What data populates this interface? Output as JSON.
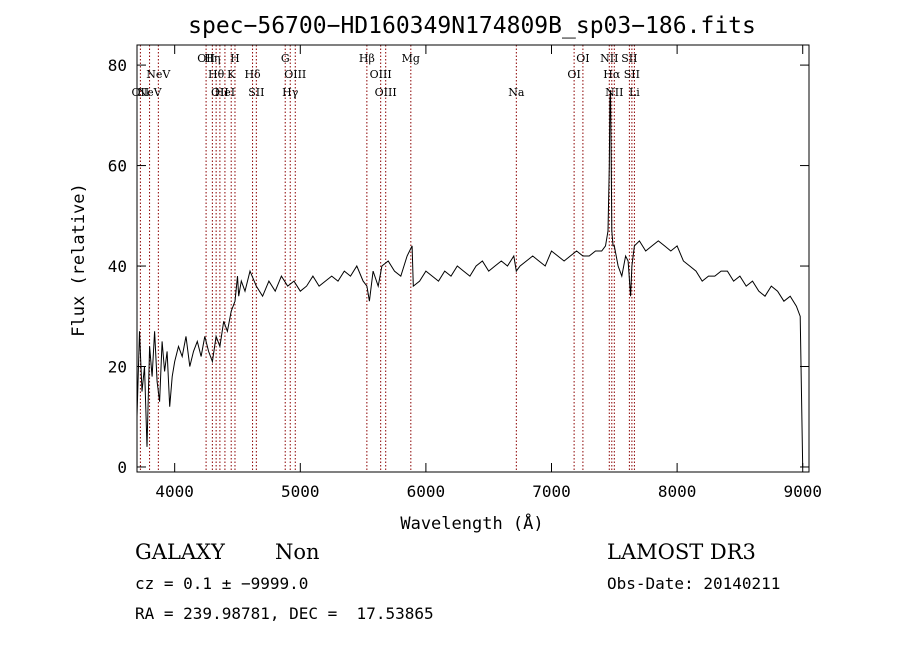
{
  "chart_data": {
    "type": "line",
    "title": "spec−56700−HD160349N174809B_sp03−186.fits",
    "xlabel": "Wavelength (Å)",
    "ylabel": "Flux (relative)",
    "xlim": [
      3700,
      9050
    ],
    "ylim": [
      -1,
      84
    ],
    "x_ticks": [
      4000,
      5000,
      6000,
      7000,
      8000,
      9000
    ],
    "y_ticks": [
      0,
      20,
      40,
      60,
      80
    ],
    "line_color": "#000000",
    "marker_color": "#8b0000",
    "series": [
      {
        "x": [
          3700,
          3720,
          3740,
          3760,
          3780,
          3800,
          3820,
          3840,
          3860,
          3880,
          3900,
          3920,
          3940,
          3960,
          3980,
          4000,
          4030,
          4060,
          4090,
          4120,
          4150,
          4180,
          4210,
          4240,
          4270,
          4300,
          4330,
          4360,
          4390,
          4420,
          4450,
          4480,
          4500,
          4510,
          4530,
          4560,
          4600,
          4650,
          4700,
          4750,
          4800,
          4850,
          4900,
          4950,
          5000,
          5050,
          5100,
          5150,
          5200,
          5250,
          5300,
          5350,
          5400,
          5450,
          5500,
          5530,
          5550,
          5580,
          5620,
          5650,
          5700,
          5750,
          5800,
          5850,
          5890,
          5900,
          5950,
          6000,
          6050,
          6100,
          6150,
          6200,
          6250,
          6300,
          6350,
          6400,
          6450,
          6500,
          6550,
          6600,
          6650,
          6700,
          6720,
          6750,
          6800,
          6850,
          6900,
          6950,
          7000,
          7050,
          7100,
          7150,
          7200,
          7250,
          7300,
          7350,
          7400,
          7430,
          7450,
          7460,
          7465,
          7470,
          7475,
          7480,
          7490,
          7500,
          7530,
          7560,
          7590,
          7610,
          7630,
          7640,
          7660,
          7700,
          7750,
          7800,
          7850,
          7900,
          7950,
          8000,
          8050,
          8100,
          8150,
          8200,
          8250,
          8300,
          8350,
          8400,
          8450,
          8500,
          8550,
          8600,
          8650,
          8700,
          8750,
          8800,
          8850,
          8900,
          8950,
          8980,
          9000
        ],
        "values": [
          10,
          27,
          15,
          20,
          4,
          24,
          18,
          27,
          17,
          13,
          25,
          19,
          23,
          12,
          18,
          21,
          24,
          22,
          26,
          20,
          23,
          25,
          22,
          26,
          23,
          21,
          26,
          24,
          29,
          27,
          31,
          33,
          38,
          34,
          37,
          35,
          39,
          36,
          34,
          37,
          35,
          38,
          36,
          37,
          35,
          36,
          38,
          36,
          37,
          38,
          37,
          39,
          38,
          40,
          37,
          36,
          33,
          39,
          36,
          40,
          41,
          39,
          38,
          42,
          44,
          36,
          37,
          39,
          38,
          37,
          39,
          38,
          40,
          39,
          38,
          40,
          41,
          39,
          40,
          41,
          40,
          42,
          39,
          40,
          41,
          42,
          41,
          40,
          43,
          42,
          41,
          42,
          43,
          42,
          42,
          43,
          43,
          44,
          47,
          60,
          73,
          75,
          62,
          47,
          44,
          44,
          40,
          38,
          42,
          41,
          34,
          40,
          44,
          45,
          43,
          44,
          45,
          44,
          43,
          44,
          41,
          40,
          39,
          37,
          38,
          38,
          39,
          39,
          37,
          38,
          36,
          37,
          35,
          34,
          36,
          35,
          33,
          34,
          32,
          30,
          0
        ]
      }
    ],
    "lines": [
      {
        "x": 3727,
        "label": "OII",
        "row": 3
      },
      {
        "x": 3800,
        "label": "NeV",
        "row": 3
      },
      {
        "x": 3870,
        "label": "NeV",
        "row": 2
      },
      {
        "x": 4250,
        "label": "OII",
        "row": 1
      },
      {
        "x": 4300,
        "label": "Hη",
        "row": 1
      },
      {
        "x": 4330,
        "label": "Hθ",
        "row": 2
      },
      {
        "x": 4360,
        "label": "OII",
        "row": 3
      },
      {
        "x": 4400,
        "label": "HeI",
        "row": 3
      },
      {
        "x": 4450,
        "label": "K",
        "row": 2
      },
      {
        "x": 4480,
        "label": "H",
        "row": 1
      },
      {
        "x": 4620,
        "label": "Hδ",
        "row": 2
      },
      {
        "x": 4650,
        "label": "SII",
        "row": 3
      },
      {
        "x": 4880,
        "label": "G",
        "row": 1
      },
      {
        "x": 4920,
        "label": "Hγ",
        "row": 3
      },
      {
        "x": 4960,
        "label": "OIII",
        "row": 2
      },
      {
        "x": 5530,
        "label": "Hβ",
        "row": 1
      },
      {
        "x": 5640,
        "label": "OIII",
        "row": 2
      },
      {
        "x": 5680,
        "label": "OIII",
        "row": 3
      },
      {
        "x": 5880,
        "label": "Mg",
        "row": 1
      },
      {
        "x": 6720,
        "label": "Na",
        "row": 3
      },
      {
        "x": 7180,
        "label": "OI",
        "row": 2
      },
      {
        "x": 7250,
        "label": "OI",
        "row": 1
      },
      {
        "x": 7460,
        "label": "NII",
        "row": 1
      },
      {
        "x": 7480,
        "label": "Hα",
        "row": 2
      },
      {
        "x": 7500,
        "label": "NII",
        "row": 3
      },
      {
        "x": 7620,
        "label": "SII",
        "row": 1
      },
      {
        "x": 7640,
        "label": "SII",
        "row": 2
      },
      {
        "x": 7660,
        "label": "Li",
        "row": 3
      }
    ]
  },
  "info": {
    "class_label": "GALAXY",
    "subclass": "Non",
    "survey": "LAMOST DR3",
    "cz": "cz = 0.1 ± −9999.0",
    "obs_date": "Obs-Date: 20140211",
    "coords": "RA = 239.98781, DEC =  17.53865"
  }
}
